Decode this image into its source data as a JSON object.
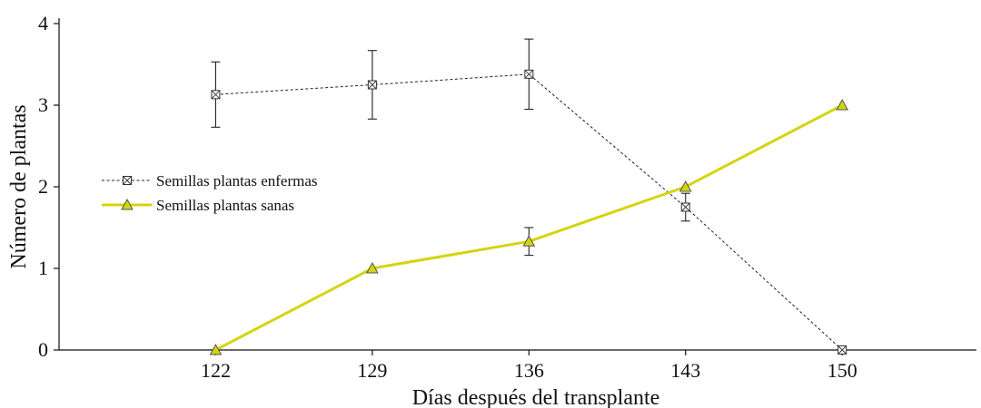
{
  "chart_data": {
    "type": "line",
    "title": "",
    "xlabel": "Días después del transplante",
    "ylabel": "Número de plantas",
    "x": [
      122,
      129,
      136,
      143,
      150
    ],
    "x_tick_labels": [
      "122",
      "129",
      "136",
      "143",
      "150"
    ],
    "y_ticks": [
      0,
      1,
      2,
      3,
      4
    ],
    "y_tick_labels": [
      "0",
      "1",
      "2",
      "3",
      "4"
    ],
    "xlim": [
      115,
      156
    ],
    "ylim": [
      0,
      4
    ],
    "grid": false,
    "legend": "center-left",
    "series": [
      {
        "name": "Semillas plantas enfermas",
        "values": [
          3.13,
          3.25,
          3.38,
          1.75,
          0
        ],
        "error": [
          0.4,
          0.42,
          0.43,
          0.17,
          0
        ],
        "color": "#222222",
        "line_style": "dotted",
        "marker": "crossed-square-icon"
      },
      {
        "name": "Semillas plantas sanas",
        "values": [
          0,
          1,
          1.33,
          2,
          3
        ],
        "error": [
          0,
          0,
          0.17,
          0,
          0
        ],
        "color": "#d4d40f",
        "line_style": "solid",
        "marker": "triangle-icon"
      }
    ]
  }
}
